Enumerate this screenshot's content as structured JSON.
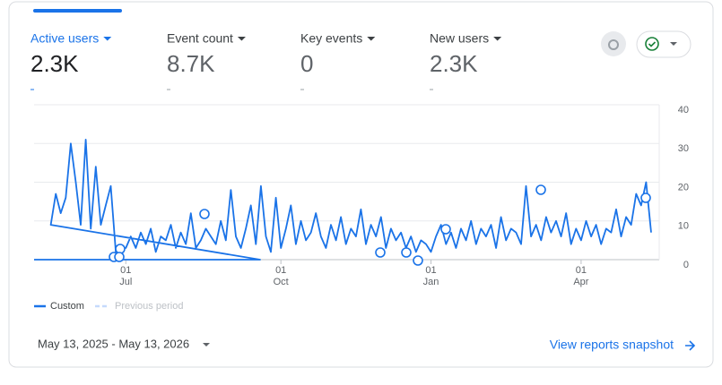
{
  "tabs": [
    {
      "label": "Active users",
      "value": "2.3K"
    },
    {
      "label": "Event count",
      "value": "8.7K"
    },
    {
      "label": "Key events",
      "value": "0"
    },
    {
      "label": "New users",
      "value": "2.3K"
    }
  ],
  "chart_data": {
    "type": "line",
    "categories": [
      null,
      null,
      null,
      null,
      null,
      null,
      null,
      null,
      null,
      null,
      null,
      null,
      null,
      null,
      null,
      null,
      "01 Jul",
      null,
      null,
      null,
      null,
      null,
      null,
      null,
      null,
      null,
      null,
      null,
      null,
      null,
      null,
      null,
      null,
      null,
      null,
      null,
      null,
      null,
      null,
      null,
      null,
      null,
      null,
      null,
      null,
      null,
      null,
      "01 Oct",
      null,
      null,
      null,
      null,
      null,
      null,
      null,
      null,
      null,
      null,
      null,
      null,
      null,
      null,
      null,
      null,
      null,
      null,
      null,
      null,
      null,
      null,
      null,
      null,
      null,
      null,
      null,
      null,
      null,
      "01 Jan",
      null,
      null,
      null,
      null,
      null,
      null,
      null,
      null,
      null,
      null,
      null,
      null,
      null,
      null,
      null,
      null,
      null,
      null,
      null,
      null,
      null,
      null,
      null,
      null,
      null,
      null,
      null,
      null,
      null,
      "01 Apr",
      null,
      null,
      null,
      null,
      null,
      null,
      null,
      null,
      null,
      null,
      null,
      null,
      null,
      null
    ],
    "series": [
      {
        "name": "Custom",
        "color": "#1a73e8",
        "values": [
          0,
          9,
          17,
          12,
          16,
          30,
          20,
          9,
          31,
          8,
          24,
          9,
          14,
          19,
          2,
          3,
          3,
          6,
          3,
          7,
          4,
          8,
          2,
          6,
          5,
          9,
          3,
          7,
          4,
          12,
          3,
          5,
          8,
          6,
          4,
          10,
          5,
          18,
          6,
          3,
          8,
          14,
          4,
          19,
          6,
          2,
          16,
          3,
          8,
          14,
          4,
          10,
          5,
          7,
          12,
          6,
          3,
          9,
          5,
          11,
          4,
          8,
          6,
          13,
          4,
          9,
          6,
          11,
          3,
          8,
          5,
          7,
          3,
          6,
          2,
          5,
          4,
          2,
          6,
          9,
          4,
          7,
          3,
          8,
          5,
          10,
          4,
          8,
          6,
          9,
          3,
          11,
          5,
          8,
          7,
          4,
          19,
          6,
          9,
          5,
          11,
          7,
          10,
          6,
          12,
          4,
          8,
          5,
          10,
          6,
          9,
          4,
          8,
          7,
          13,
          6,
          11,
          9,
          17,
          14,
          20,
          7
        ]
      }
    ],
    "legend_extra": "Previous period",
    "ylim": [
      0,
      40
    ],
    "yticks": [
      0,
      10,
      20,
      30,
      40
    ],
    "grid": true
  },
  "footer": {
    "date_range": "May 13, 2025 - May 13, 2026",
    "link": "View reports snapshot"
  }
}
